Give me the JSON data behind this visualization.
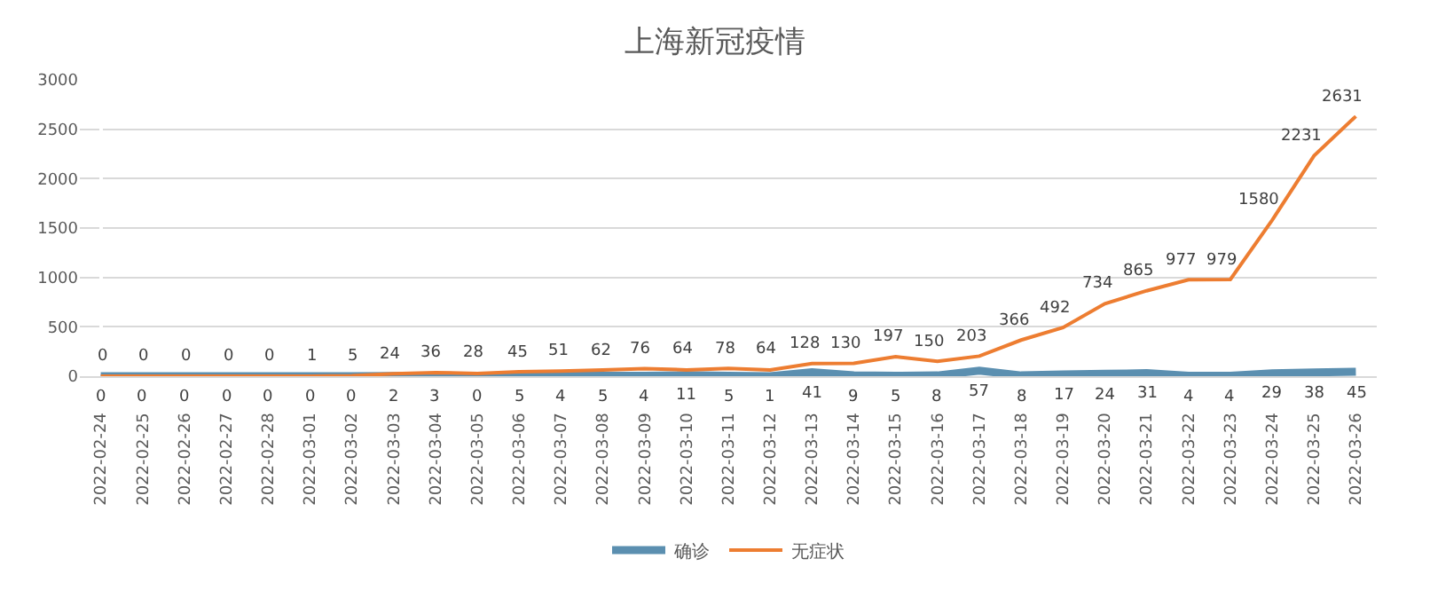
{
  "chart_data": {
    "type": "line",
    "title": "上海新冠疫情",
    "categories": [
      "2022-02-24",
      "2022-02-25",
      "2022-02-26",
      "2022-02-27",
      "2022-02-28",
      "2022-03-01",
      "2022-03-02",
      "2022-03-03",
      "2022-03-04",
      "2022-03-05",
      "2022-03-06",
      "2022-03-07",
      "2022-03-08",
      "2022-03-09",
      "2022-03-10",
      "2022-03-11",
      "2022-03-12",
      "2022-03-13",
      "2022-03-14",
      "2022-03-15",
      "2022-03-16",
      "2022-03-17",
      "2022-03-18",
      "2022-03-19",
      "2022-03-20",
      "2022-03-21",
      "2022-03-22",
      "2022-03-23",
      "2022-03-24",
      "2022-03-25",
      "2022-03-26"
    ],
    "series": [
      {
        "name": "确诊",
        "color": "#5b8fb0",
        "values": [
          0,
          0,
          0,
          0,
          0,
          0,
          0,
          2,
          3,
          0,
          5,
          4,
          5,
          4,
          11,
          5,
          1,
          41,
          9,
          5,
          8,
          57,
          8,
          17,
          24,
          31,
          4,
          4,
          29,
          38,
          45
        ]
      },
      {
        "name": "无症状",
        "color": "#ed7d31",
        "values": [
          0,
          0,
          0,
          0,
          0,
          1,
          5,
          24,
          36,
          28,
          45,
          51,
          62,
          76,
          64,
          78,
          64,
          128,
          130,
          197,
          150,
          203,
          366,
          492,
          734,
          865,
          977,
          979,
          1580,
          2231,
          2631
        ]
      }
    ],
    "ylim": [
      0,
      3000
    ],
    "yticks": [
      0,
      500,
      1000,
      1500,
      2000,
      2500,
      3000
    ],
    "grid": "y",
    "legend": "bottom",
    "data_labels": true,
    "marker": "none"
  }
}
